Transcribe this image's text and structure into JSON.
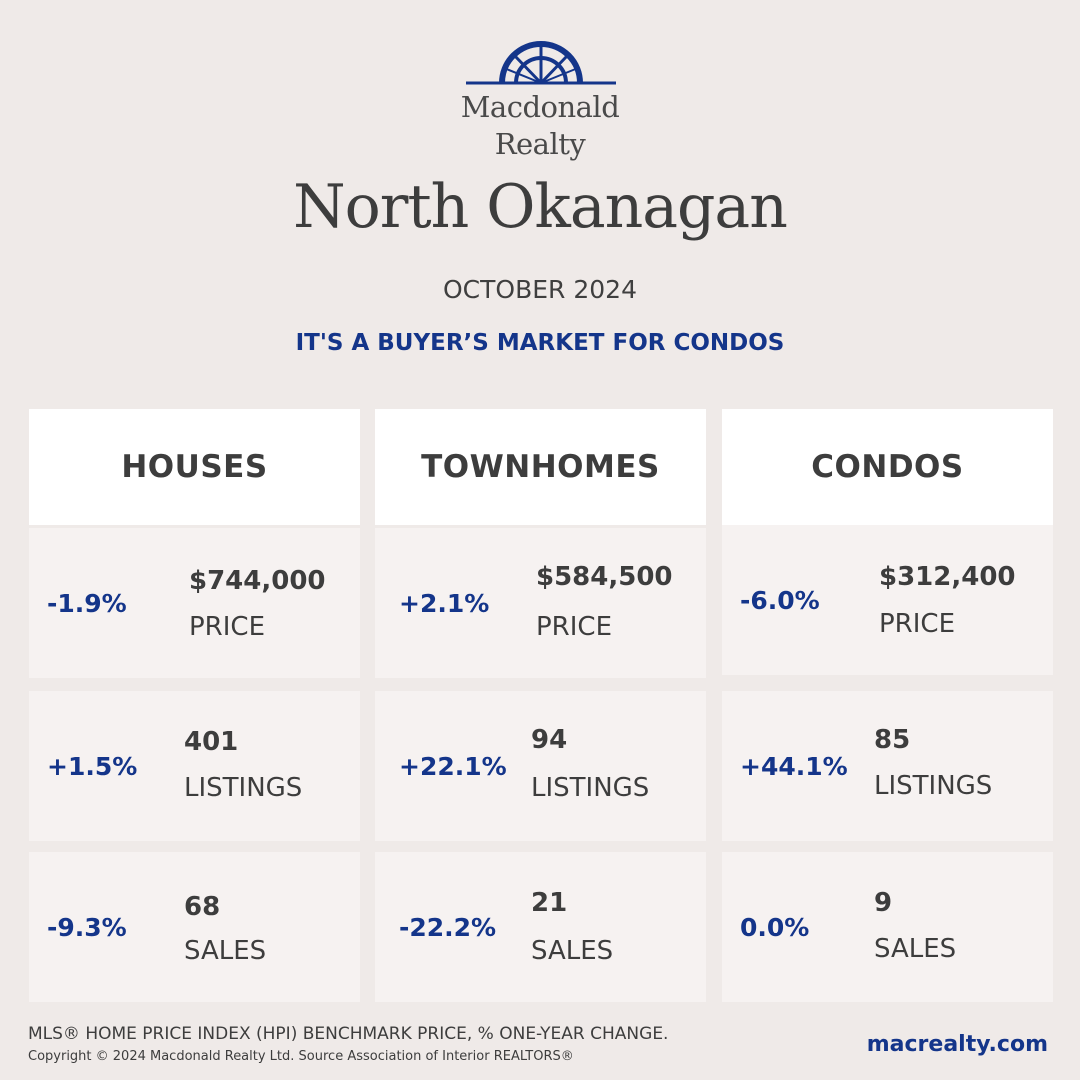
{
  "brand": {
    "name_line1": "Macdonald",
    "name_line2": "Realty",
    "logo_icon": "sunburst-arch-icon",
    "color": "#14358a"
  },
  "title": "North Okanagan",
  "month": "OCTOBER 2024",
  "headline": "IT'S A BUYER’S MARKET FOR CONDOS",
  "columns": [
    {
      "heading": "HOUSES",
      "stats": [
        {
          "change": "-1.9%",
          "value": "$744,000",
          "label": "PRICE"
        },
        {
          "change": "+1.5%",
          "value": "401",
          "label": "LISTINGS"
        },
        {
          "change": "-9.3%",
          "value": "68",
          "label": "SALES"
        }
      ]
    },
    {
      "heading": "TOWNHOMES",
      "stats": [
        {
          "change": "+2.1%",
          "value": "$584,500",
          "label": "PRICE"
        },
        {
          "change": "+22.1%",
          "value": "94",
          "label": "LISTINGS"
        },
        {
          "change": "-22.2%",
          "value": "21",
          "label": "SALES"
        }
      ]
    },
    {
      "heading": "CONDOS",
      "stats": [
        {
          "change": "-6.0%",
          "value": "$312,400",
          "label": "PRICE"
        },
        {
          "change": "+44.1%",
          "value": "85",
          "label": "LISTINGS"
        },
        {
          "change": "0.0%",
          "value": "9",
          "label": "SALES"
        }
      ]
    }
  ],
  "footnote": "MLS® HOME PRICE INDEX (HPI) BENCHMARK PRICE, % ONE-YEAR CHANGE.",
  "copyright": "Copyright © 2024 Macdonald Realty Ltd. Source Association of Interior REALTORS®",
  "website": "macrealty.com"
}
